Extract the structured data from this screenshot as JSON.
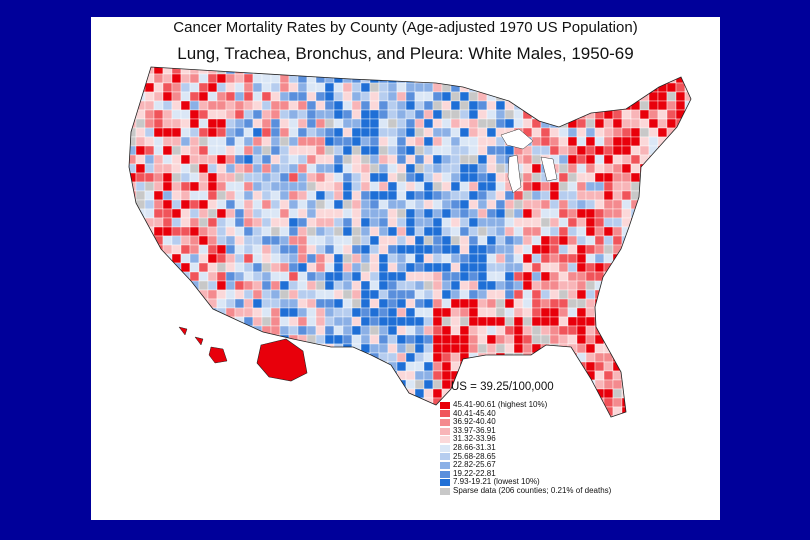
{
  "map": {
    "title": "Cancer Mortality Rates by County (Age-adjusted 1970 US Population)",
    "subtitle": "Lung, Trachea, Bronchus, and Pleura:  White Males, 1950-69",
    "us_rate": "US = 39.25/100,000",
    "legend": [
      {
        "label": "45.41-90.61 (highest 10%)",
        "color": "#e8000b"
      },
      {
        "label": "40.41-45.40",
        "color": "#f0545a"
      },
      {
        "label": "36.92-40.40",
        "color": "#f48a8e"
      },
      {
        "label": "33.97-36.91",
        "color": "#f8b5b8"
      },
      {
        "label": "31.32-33.96",
        "color": "#fbd8d9"
      },
      {
        "label": "28.66-31.31",
        "color": "#dbe7f6"
      },
      {
        "label": "25.68-28.65",
        "color": "#b6cdef"
      },
      {
        "label": "22.82-25.67",
        "color": "#8bb0e6"
      },
      {
        "label": "19.22-22.81",
        "color": "#5a8fdc"
      },
      {
        "label": "7.93-19.21 (lowest 10%)",
        "color": "#1f6fd6"
      },
      {
        "label": "Sparse data (206 counties; 0.21% of deaths)",
        "color": "#c8c8c8"
      }
    ]
  }
}
